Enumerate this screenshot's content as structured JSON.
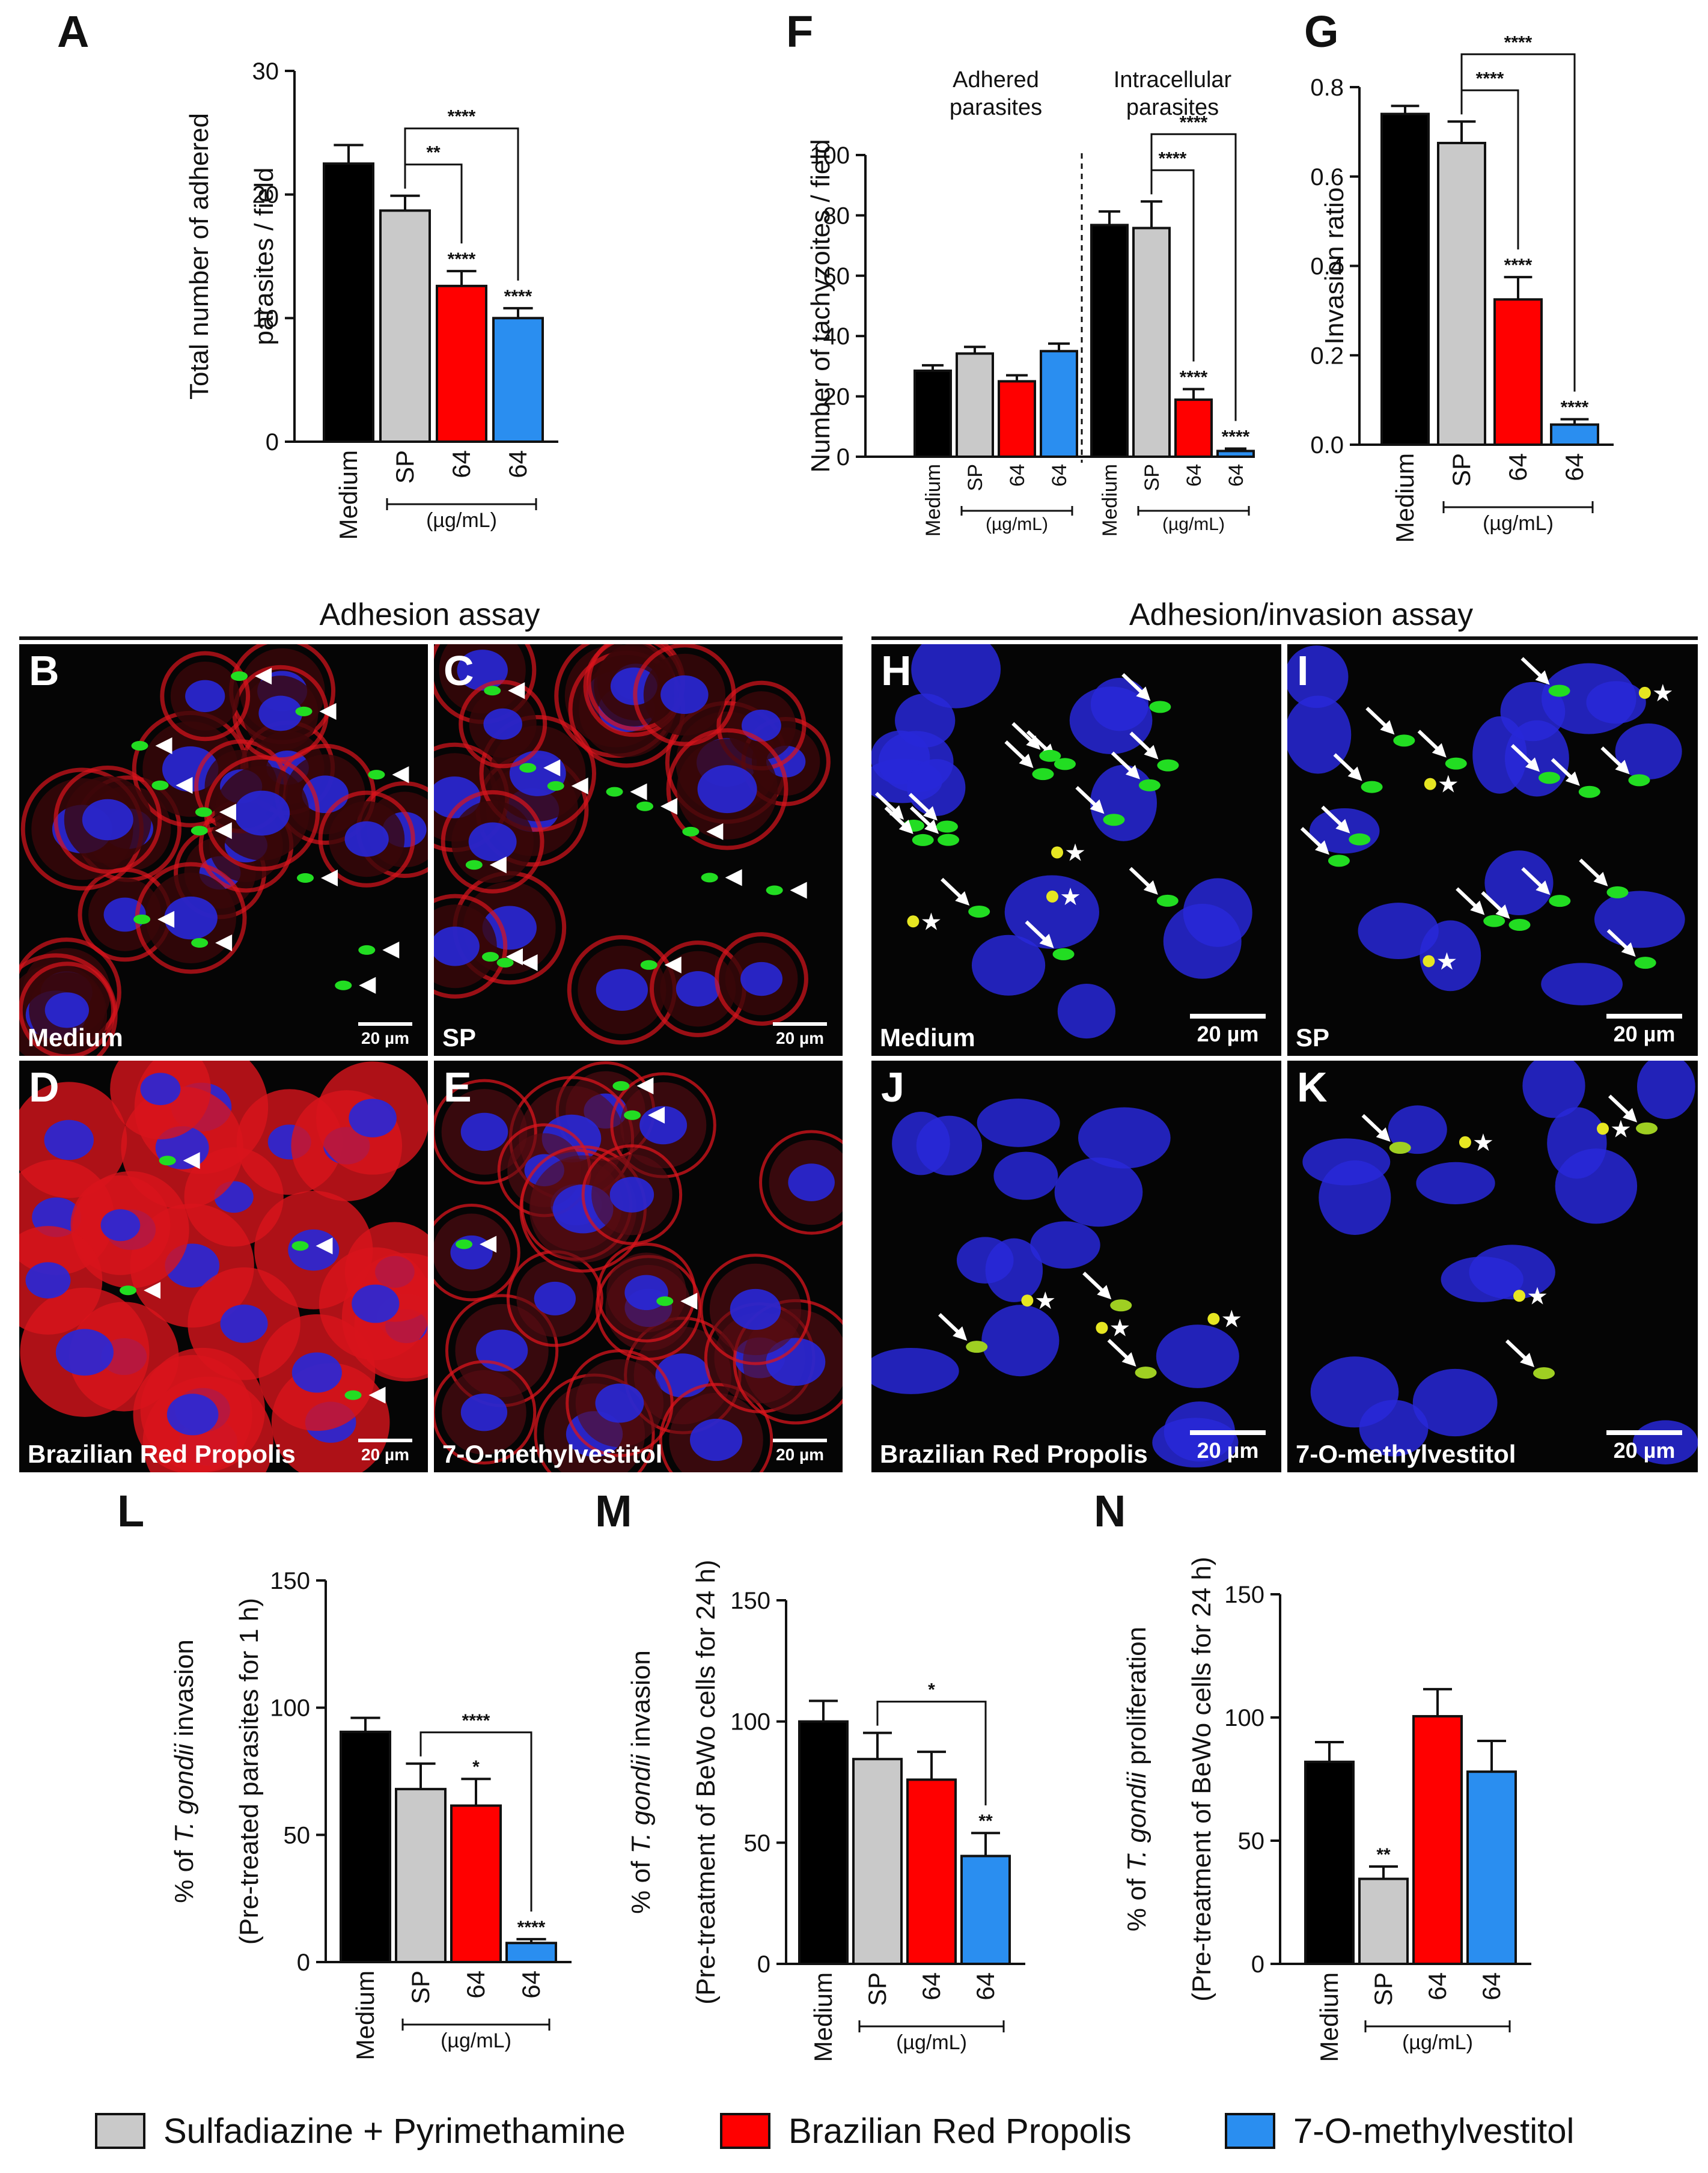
{
  "colors": {
    "medium": "#000000",
    "sp": "#c9c9c9",
    "brp": "#ff0000",
    "ome": "#2a8ef0",
    "actin": "#d8141c",
    "nucleus": "#2828d8",
    "parasite": "#22dd22",
    "yellow": "#e6e622",
    "image_bg": "#050505"
  },
  "panels": {
    "A": "A",
    "F": "F",
    "G": "G",
    "B": "B",
    "C": "C",
    "D": "D",
    "E": "E",
    "H": "H",
    "I": "I",
    "J": "J",
    "K": "K",
    "L": "L",
    "M": "M",
    "N": "N"
  },
  "xlabels": {
    "medium": "Medium",
    "sp": "SP",
    "dose": "64",
    "unit": "(µg/mL)"
  },
  "assays": {
    "adhesion": "Adhesion assay",
    "adhesion_invasion": "Adhesion/invasion assay"
  },
  "images": {
    "B": "Medium",
    "C": "SP",
    "D": "Brazilian Red Propolis",
    "E": "7-O-methylvestitol",
    "H": "Medium",
    "I": "SP",
    "J": "Brazilian Red Propolis",
    "K": "7-O-methylvestitol",
    "scale": "20 µm"
  },
  "legend": {
    "items": [
      {
        "label": "Sulfadiazine + Pyrimethamine",
        "color": "#c9c9c9"
      },
      {
        "label": "Brazilian Red Propolis",
        "color": "#ff0000"
      },
      {
        "label": "7-O-methylvestitol",
        "color": "#2a8ef0"
      }
    ]
  },
  "chart_data": [
    {
      "id": "A",
      "type": "bar",
      "ylabel_lines": [
        "Total number of adhered",
        "parasites / field"
      ],
      "ylim": [
        0,
        30
      ],
      "yticks": [
        0,
        10,
        20,
        30
      ],
      "categories": [
        "Medium",
        "SP",
        "64",
        "64"
      ],
      "values": [
        22.5,
        18.7,
        12.6,
        10.0
      ],
      "errors": [
        1.5,
        1.2,
        1.2,
        0.8
      ],
      "significance": [
        "",
        "",
        "****",
        "****"
      ],
      "brackets": [
        {
          "from": 1,
          "to": 2,
          "label": "**"
        },
        {
          "from": 1,
          "to": 3,
          "label": "****"
        }
      ]
    },
    {
      "id": "F",
      "type": "bar",
      "ylabel_lines": [
        "Number of tachyzoites / field"
      ],
      "ylim": [
        0,
        100
      ],
      "yticks": [
        0,
        20,
        40,
        60,
        80,
        100
      ],
      "groups": [
        {
          "title_lines": [
            "Adhered",
            "parasites"
          ],
          "categories": [
            "Medium",
            "SP",
            "64",
            "64"
          ],
          "values": [
            28.5,
            34.2,
            25.0,
            35.0
          ],
          "errors": [
            1.8,
            2.2,
            2.0,
            2.5
          ],
          "significance": [
            "",
            "",
            "",
            ""
          ],
          "brackets": []
        },
        {
          "title_lines": [
            "Intracellular",
            "parasites"
          ],
          "categories": [
            "Medium",
            "SP",
            "64",
            "64"
          ],
          "values": [
            76.8,
            75.8,
            18.9,
            1.9
          ],
          "errors": [
            4.5,
            8.8,
            3.5,
            0.8
          ],
          "significance": [
            "",
            "",
            "****",
            "****"
          ],
          "brackets": [
            {
              "from": 1,
              "to": 2,
              "label": "****"
            },
            {
              "from": 1,
              "to": 3,
              "label": "****"
            }
          ]
        }
      ]
    },
    {
      "id": "G",
      "type": "bar",
      "ylabel_lines": [
        "Invasion ratio"
      ],
      "ylim": [
        0,
        0.8
      ],
      "yticks": [
        0.0,
        0.2,
        0.4,
        0.6,
        0.8
      ],
      "tick_decimals": 1,
      "categories": [
        "Medium",
        "SP",
        "64",
        "64"
      ],
      "values": [
        0.74,
        0.675,
        0.325,
        0.045
      ],
      "errors": [
        0.018,
        0.048,
        0.05,
        0.012
      ],
      "significance": [
        "",
        "",
        "****",
        "****"
      ],
      "brackets": [
        {
          "from": 1,
          "to": 2,
          "label": "****"
        },
        {
          "from": 1,
          "to": 3,
          "label": "****"
        }
      ]
    },
    {
      "id": "L",
      "type": "bar",
      "ylabel_lines": [
        "% of T. gondii invasion",
        "(Pre-treated parasites for 1 h)"
      ],
      "ylim": [
        0,
        150
      ],
      "yticks": [
        0,
        50,
        100,
        150
      ],
      "categories": [
        "Medium",
        "SP",
        "64",
        "64"
      ],
      "values": [
        90.5,
        68.0,
        61.5,
        7.5
      ],
      "errors": [
        5.5,
        10.0,
        10.5,
        1.5
      ],
      "significance": [
        "",
        "",
        "*",
        "****"
      ],
      "brackets": [
        {
          "from": 1,
          "to": 3,
          "label": "****"
        }
      ]
    },
    {
      "id": "M",
      "type": "bar",
      "ylabel_lines": [
        "% of T. gondii invasion",
        "(Pre-treatment of BeWo cells for 24 h)"
      ],
      "ylim": [
        0,
        150
      ],
      "yticks": [
        0,
        50,
        100,
        150
      ],
      "categories": [
        "Medium",
        "SP",
        "64",
        "64"
      ],
      "values": [
        100.0,
        84.5,
        76.0,
        44.5
      ],
      "errors": [
        8.5,
        10.8,
        11.5,
        9.5
      ],
      "significance": [
        "",
        "",
        "",
        "**"
      ],
      "brackets": [
        {
          "from": 1,
          "to": 3,
          "label": "*"
        }
      ]
    },
    {
      "id": "N",
      "type": "bar",
      "ylabel_lines": [
        "% of T. gondii proliferation",
        "(Pre-treatment of BeWo cells for 24 h)"
      ],
      "ylim": [
        0,
        150
      ],
      "yticks": [
        0,
        50,
        100,
        150
      ],
      "categories": [
        "Medium",
        "SP",
        "64",
        "64"
      ],
      "values": [
        82.0,
        34.5,
        100.5,
        78.0
      ],
      "errors": [
        8.0,
        5.0,
        11.0,
        12.5
      ],
      "significance": [
        "",
        "**",
        "",
        ""
      ],
      "brackets": []
    }
  ]
}
